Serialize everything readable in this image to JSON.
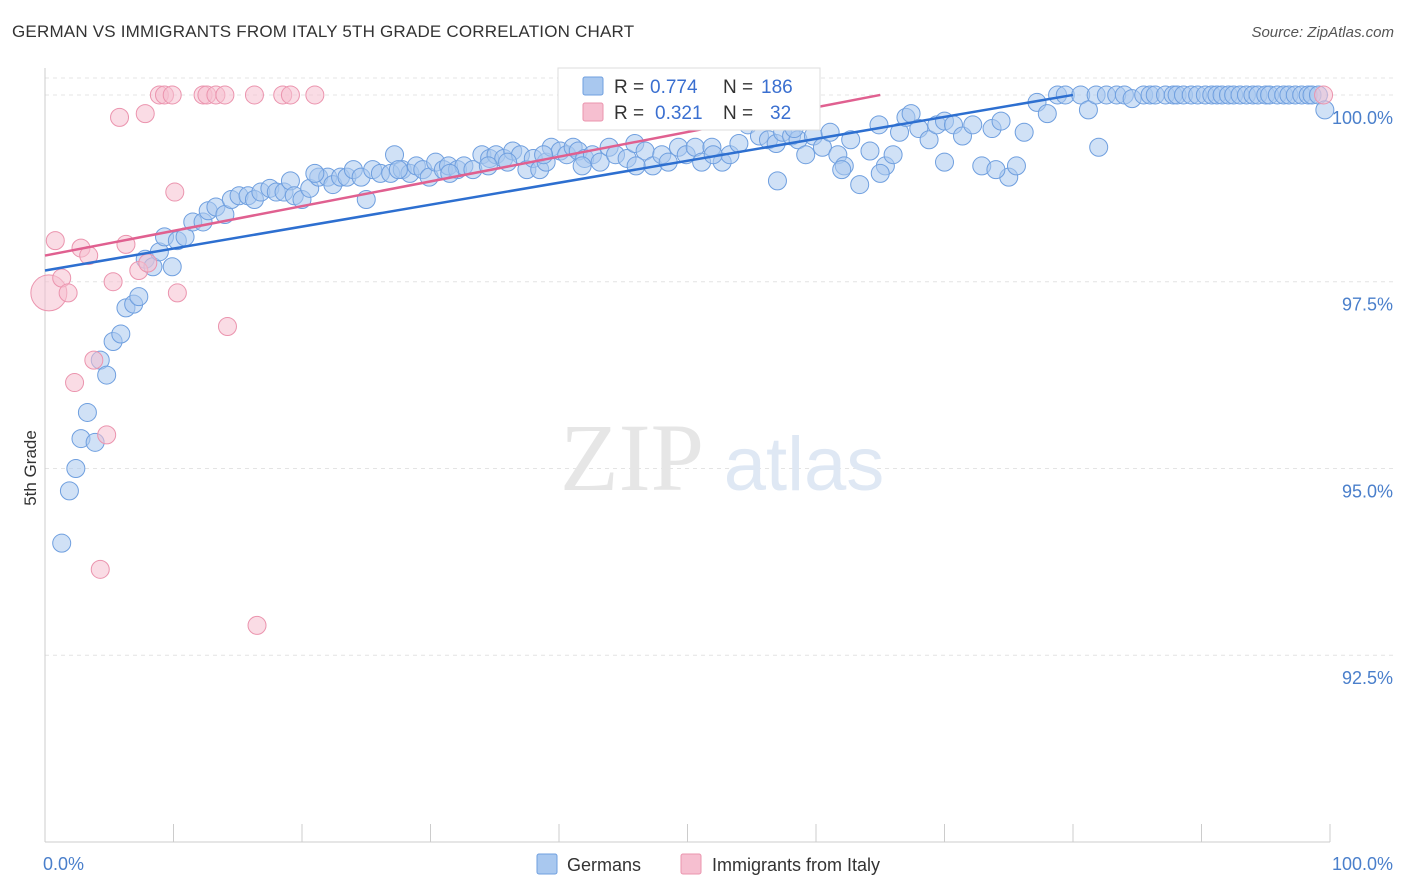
{
  "title": "GERMAN VS IMMIGRANTS FROM ITALY 5TH GRADE CORRELATION CHART",
  "source": "Source: ZipAtlas.com",
  "watermark": {
    "zip": "ZIP",
    "atlas": "atlas"
  },
  "legend_box": {
    "rows": [
      {
        "r_label": "R =",
        "r_value": "0.774",
        "n_label": "N =",
        "n_value": "186",
        "color": "#a9c8ef"
      },
      {
        "r_label": "R =",
        "r_value": "0.321",
        "n_label": "N =",
        "n_value": "32",
        "color": "#f6bfd0"
      }
    ]
  },
  "chart_data": {
    "type": "scatter",
    "xlabel": "",
    "ylabel": "5th Grade",
    "xlim": [
      0,
      100
    ],
    "ylim": [
      90,
      100.2
    ],
    "x_tick_labels": [
      "0.0%",
      "100.0%"
    ],
    "y_ticks": [
      92.5,
      95.0,
      97.5,
      100.0
    ],
    "y_tick_labels": [
      "92.5%",
      "95.0%",
      "97.5%",
      "100.0%"
    ],
    "grid": true,
    "legend": "bottom-center",
    "series": [
      {
        "name": "Germans",
        "color": "#a9c8ef",
        "stroke": "#6f9fdf",
        "trend": {
          "x": [
            0,
            80
          ],
          "y": [
            97.65,
            100.0
          ],
          "color": "#2d6fd0"
        },
        "points": [
          [
            1.3,
            94.0
          ],
          [
            1.9,
            94.7
          ],
          [
            2.4,
            95.0
          ],
          [
            2.8,
            95.4
          ],
          [
            3.3,
            95.75
          ],
          [
            3.9,
            95.35
          ],
          [
            4.3,
            96.45
          ],
          [
            4.8,
            96.25
          ],
          [
            5.3,
            96.7
          ],
          [
            5.9,
            96.8
          ],
          [
            6.3,
            97.15
          ],
          [
            6.9,
            97.2
          ],
          [
            7.3,
            97.3
          ],
          [
            7.8,
            97.8
          ],
          [
            8.4,
            97.7
          ],
          [
            8.9,
            97.9
          ],
          [
            9.3,
            98.1
          ],
          [
            9.9,
            97.7
          ],
          [
            10.3,
            98.05
          ],
          [
            10.9,
            98.1
          ],
          [
            11.5,
            98.3
          ],
          [
            12.3,
            98.3
          ],
          [
            12.7,
            98.45
          ],
          [
            13.3,
            98.5
          ],
          [
            14.0,
            98.4
          ],
          [
            14.5,
            98.6
          ],
          [
            15.1,
            98.65
          ],
          [
            15.8,
            98.65
          ],
          [
            16.3,
            98.6
          ],
          [
            16.8,
            98.7
          ],
          [
            17.5,
            98.75
          ],
          [
            18.0,
            98.7
          ],
          [
            18.6,
            98.7
          ],
          [
            19.1,
            98.85
          ],
          [
            19.4,
            98.65
          ],
          [
            20.0,
            98.6
          ],
          [
            20.6,
            98.75
          ],
          [
            21.3,
            98.9
          ],
          [
            22.0,
            98.9
          ],
          [
            22.4,
            98.8
          ],
          [
            23.0,
            98.9
          ],
          [
            23.5,
            98.9
          ],
          [
            24.0,
            99.0
          ],
          [
            24.6,
            98.9
          ],
          [
            25.0,
            98.6
          ],
          [
            25.5,
            99.0
          ],
          [
            26.1,
            98.95
          ],
          [
            26.9,
            98.95
          ],
          [
            27.2,
            99.2
          ],
          [
            27.8,
            99.0
          ],
          [
            28.4,
            98.95
          ],
          [
            28.9,
            99.05
          ],
          [
            29.4,
            99.0
          ],
          [
            29.9,
            98.9
          ],
          [
            30.4,
            99.1
          ],
          [
            31.0,
            99.0
          ],
          [
            31.4,
            99.05
          ],
          [
            32.1,
            99.0
          ],
          [
            32.6,
            99.05
          ],
          [
            33.3,
            99.0
          ],
          [
            34.0,
            99.2
          ],
          [
            34.6,
            99.15
          ],
          [
            35.1,
            99.2
          ],
          [
            35.7,
            99.15
          ],
          [
            36.4,
            99.25
          ],
          [
            37.0,
            99.2
          ],
          [
            37.5,
            99.0
          ],
          [
            38.0,
            99.15
          ],
          [
            38.5,
            99.0
          ],
          [
            39.0,
            99.1
          ],
          [
            39.4,
            99.3
          ],
          [
            40.1,
            99.25
          ],
          [
            40.6,
            99.2
          ],
          [
            41.1,
            99.3
          ],
          [
            41.5,
            99.25
          ],
          [
            42.0,
            99.15
          ],
          [
            42.6,
            99.2
          ],
          [
            43.2,
            99.1
          ],
          [
            43.9,
            99.3
          ],
          [
            44.4,
            99.2
          ],
          [
            45.3,
            99.15
          ],
          [
            45.9,
            99.35
          ],
          [
            46.7,
            99.25
          ],
          [
            47.3,
            99.05
          ],
          [
            48.0,
            99.2
          ],
          [
            48.5,
            99.1
          ],
          [
            49.3,
            99.3
          ],
          [
            49.9,
            99.2
          ],
          [
            50.6,
            99.3
          ],
          [
            51.1,
            99.1
          ],
          [
            51.9,
            99.3
          ],
          [
            52.7,
            99.1
          ],
          [
            53.3,
            99.2
          ],
          [
            54.0,
            99.35
          ],
          [
            54.7,
            99.6
          ],
          [
            55.6,
            99.45
          ],
          [
            56.3,
            99.4
          ],
          [
            56.9,
            99.35
          ],
          [
            57.4,
            99.5
          ],
          [
            58.1,
            99.45
          ],
          [
            58.6,
            99.4
          ],
          [
            59.2,
            99.2
          ],
          [
            59.8,
            99.45
          ],
          [
            60.5,
            99.3
          ],
          [
            61.1,
            99.5
          ],
          [
            61.7,
            99.2
          ],
          [
            62.2,
            99.05
          ],
          [
            62.7,
            99.4
          ],
          [
            63.4,
            98.8
          ],
          [
            64.2,
            99.25
          ],
          [
            64.9,
            99.6
          ],
          [
            65.4,
            99.05
          ],
          [
            66.0,
            99.2
          ],
          [
            66.5,
            99.5
          ],
          [
            67.0,
            99.7
          ],
          [
            67.4,
            99.75
          ],
          [
            68.0,
            99.55
          ],
          [
            68.8,
            99.4
          ],
          [
            69.4,
            99.6
          ],
          [
            70.0,
            99.65
          ],
          [
            70.7,
            99.6
          ],
          [
            71.4,
            99.45
          ],
          [
            72.2,
            99.6
          ],
          [
            72.9,
            99.05
          ],
          [
            73.7,
            99.55
          ],
          [
            74.4,
            99.65
          ],
          [
            75.0,
            98.9
          ],
          [
            75.6,
            99.05
          ],
          [
            76.2,
            99.5
          ],
          [
            77.2,
            99.9
          ],
          [
            78.0,
            99.75
          ],
          [
            78.8,
            100.0
          ],
          [
            79.4,
            100.0
          ],
          [
            80.6,
            100.0
          ],
          [
            81.2,
            99.8
          ],
          [
            81.8,
            100.0
          ],
          [
            82.6,
            100.0
          ],
          [
            83.4,
            100.0
          ],
          [
            84.0,
            100.0
          ],
          [
            84.6,
            99.95
          ],
          [
            85.5,
            100.0
          ],
          [
            86.0,
            100.0
          ],
          [
            86.4,
            100.0
          ],
          [
            87.2,
            100.0
          ],
          [
            87.8,
            100.0
          ],
          [
            88.1,
            100.0
          ],
          [
            88.6,
            100.0
          ],
          [
            89.2,
            100.0
          ],
          [
            89.7,
            100.0
          ],
          [
            90.3,
            100.0
          ],
          [
            90.8,
            100.0
          ],
          [
            91.2,
            100.0
          ],
          [
            91.6,
            100.0
          ],
          [
            92.1,
            100.0
          ],
          [
            92.5,
            100.0
          ],
          [
            93.0,
            100.0
          ],
          [
            93.5,
            100.0
          ],
          [
            94.0,
            100.0
          ],
          [
            94.4,
            100.0
          ],
          [
            95.0,
            100.0
          ],
          [
            95.3,
            100.0
          ],
          [
            95.9,
            100.0
          ],
          [
            96.4,
            100.0
          ],
          [
            96.8,
            100.0
          ],
          [
            97.3,
            100.0
          ],
          [
            97.8,
            100.0
          ],
          [
            98.3,
            100.0
          ],
          [
            98.6,
            100.0
          ],
          [
            99.1,
            100.0
          ],
          [
            99.6,
            99.8
          ],
          [
            82.0,
            99.3
          ],
          [
            74.0,
            99.0
          ],
          [
            70.0,
            99.1
          ],
          [
            65.0,
            98.95
          ],
          [
            57.0,
            98.85
          ],
          [
            62.0,
            99.0
          ],
          [
            46.0,
            99.05
          ],
          [
            34.5,
            99.05
          ],
          [
            27.5,
            99.0
          ],
          [
            21.0,
            98.95
          ],
          [
            31.5,
            98.95
          ],
          [
            36.0,
            99.1
          ],
          [
            41.8,
            99.05
          ],
          [
            52.0,
            99.2
          ],
          [
            58.3,
            99.55
          ],
          [
            38.8,
            99.2
          ]
        ]
      },
      {
        "name": "Immigrants from Italy",
        "color": "#f6bfd0",
        "stroke": "#eb94ae",
        "trend": {
          "x": [
            0,
            65
          ],
          "y": [
            97.85,
            100.0
          ],
          "color": "#e06090"
        },
        "points": [
          [
            0.3,
            97.35
          ],
          [
            0.8,
            98.05
          ],
          [
            1.3,
            97.55
          ],
          [
            1.8,
            97.35
          ],
          [
            2.3,
            96.15
          ],
          [
            2.8,
            97.95
          ],
          [
            3.4,
            97.85
          ],
          [
            3.8,
            96.45
          ],
          [
            4.3,
            93.65
          ],
          [
            4.8,
            95.45
          ],
          [
            5.3,
            97.5
          ],
          [
            5.8,
            99.7
          ],
          [
            6.3,
            98.0
          ],
          [
            7.3,
            97.65
          ],
          [
            8.0,
            97.75
          ],
          [
            7.8,
            99.75
          ],
          [
            8.9,
            100.0
          ],
          [
            9.3,
            100.0
          ],
          [
            9.9,
            100.0
          ],
          [
            10.1,
            98.7
          ],
          [
            10.3,
            97.35
          ],
          [
            12.3,
            100.0
          ],
          [
            12.6,
            100.0
          ],
          [
            13.3,
            100.0
          ],
          [
            14.0,
            100.0
          ],
          [
            14.2,
            96.9
          ],
          [
            16.3,
            100.0
          ],
          [
            16.5,
            92.9
          ],
          [
            18.5,
            100.0
          ],
          [
            19.1,
            100.0
          ],
          [
            21.0,
            100.0
          ],
          [
            99.5,
            100.0
          ]
        ]
      }
    ]
  }
}
